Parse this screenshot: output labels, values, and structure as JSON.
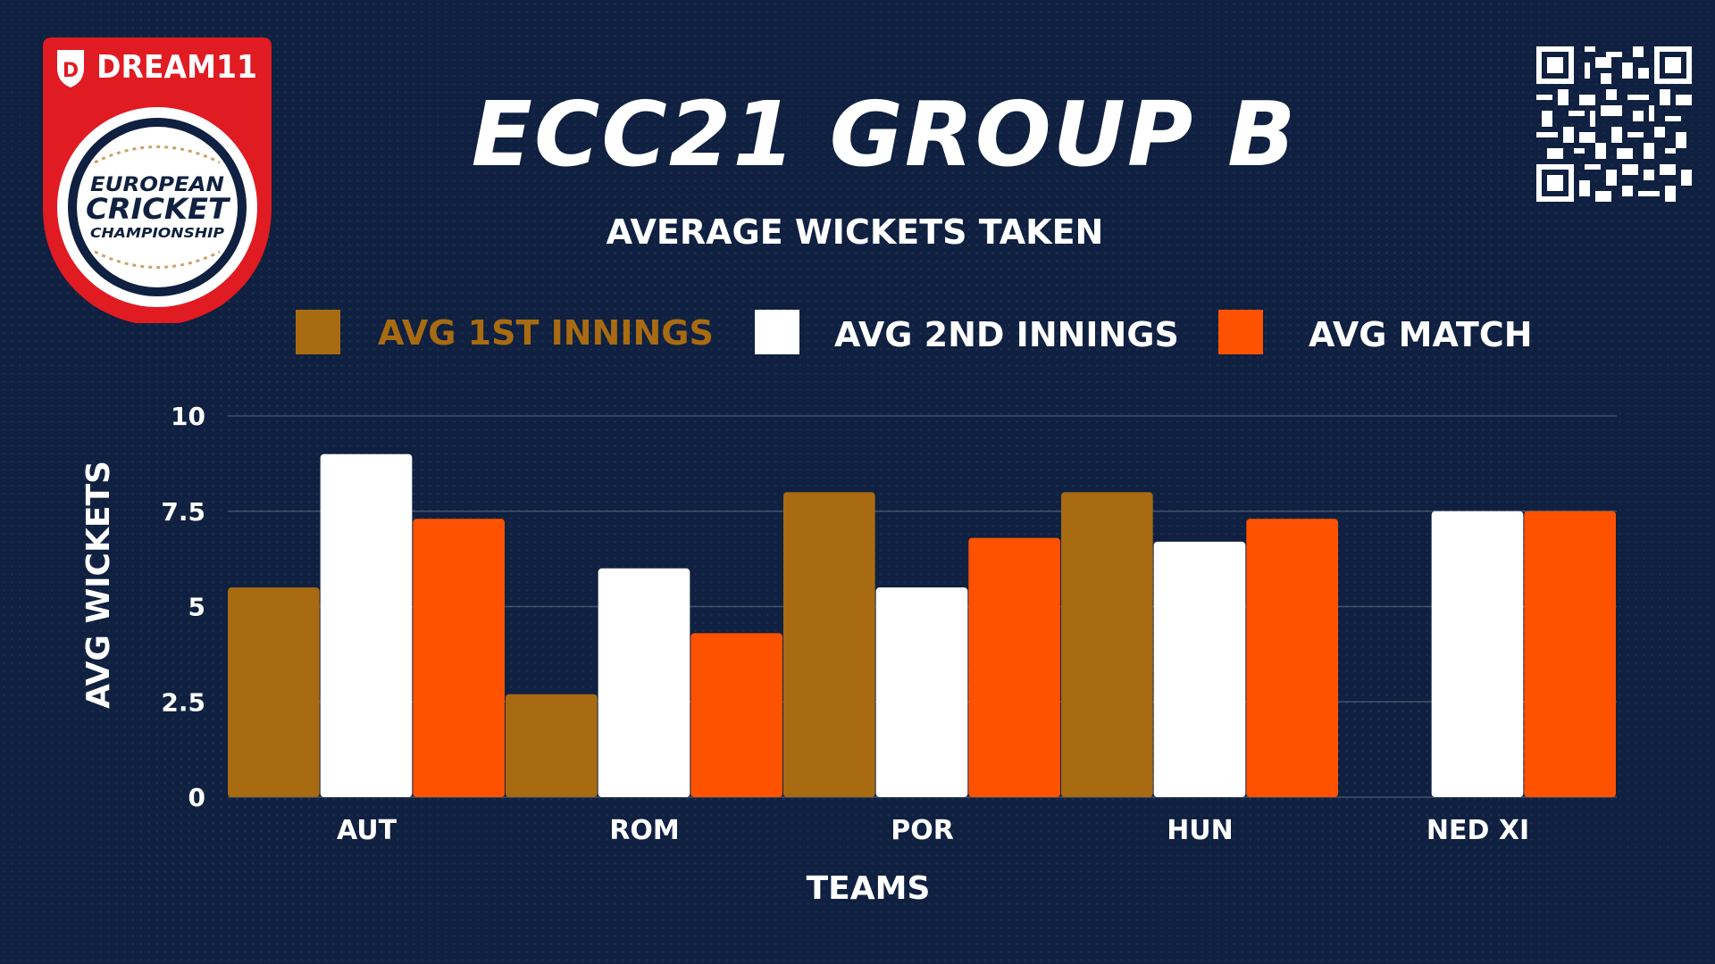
{
  "logo": {
    "brand": "DREAM11",
    "line1": "EUROPEAN",
    "line2": "CRICKET",
    "line3": "CHAMPIONSHIP"
  },
  "header": {
    "title": "ECC21 GROUP B",
    "subtitle": "AVERAGE WICKETS TAKEN"
  },
  "colors": {
    "background": "#0f2040",
    "series1": "#a86b12",
    "series2": "#ffffff",
    "series3": "#ff5200"
  },
  "chart_data": {
    "type": "bar",
    "title": "ECC21 GROUP B",
    "subtitle": "AVERAGE WICKETS TAKEN",
    "xlabel": "TEAMS",
    "ylabel": "AVG WICKETS",
    "categories": [
      "AUT",
      "ROM",
      "POR",
      "HUN",
      "NED XI"
    ],
    "series": [
      {
        "name": "AVG 1ST INNINGS",
        "color": "#a86b12",
        "values": [
          5.5,
          2.7,
          8.0,
          8.0,
          0
        ]
      },
      {
        "name": "AVG 2ND INNINGS",
        "color": "#ffffff",
        "values": [
          9.0,
          6.0,
          5.5,
          6.7,
          7.5
        ]
      },
      {
        "name": "AVG MATCH",
        "color": "#ff5200",
        "values": [
          7.3,
          4.3,
          6.8,
          7.3,
          7.5
        ]
      }
    ],
    "ylim": [
      0,
      10
    ],
    "yticks": [
      0,
      2.5,
      5,
      7.5,
      10
    ],
    "ytick_labels": [
      "0",
      "2.5",
      "5",
      "7.5",
      "10"
    ],
    "grid": true,
    "legend": "top"
  }
}
